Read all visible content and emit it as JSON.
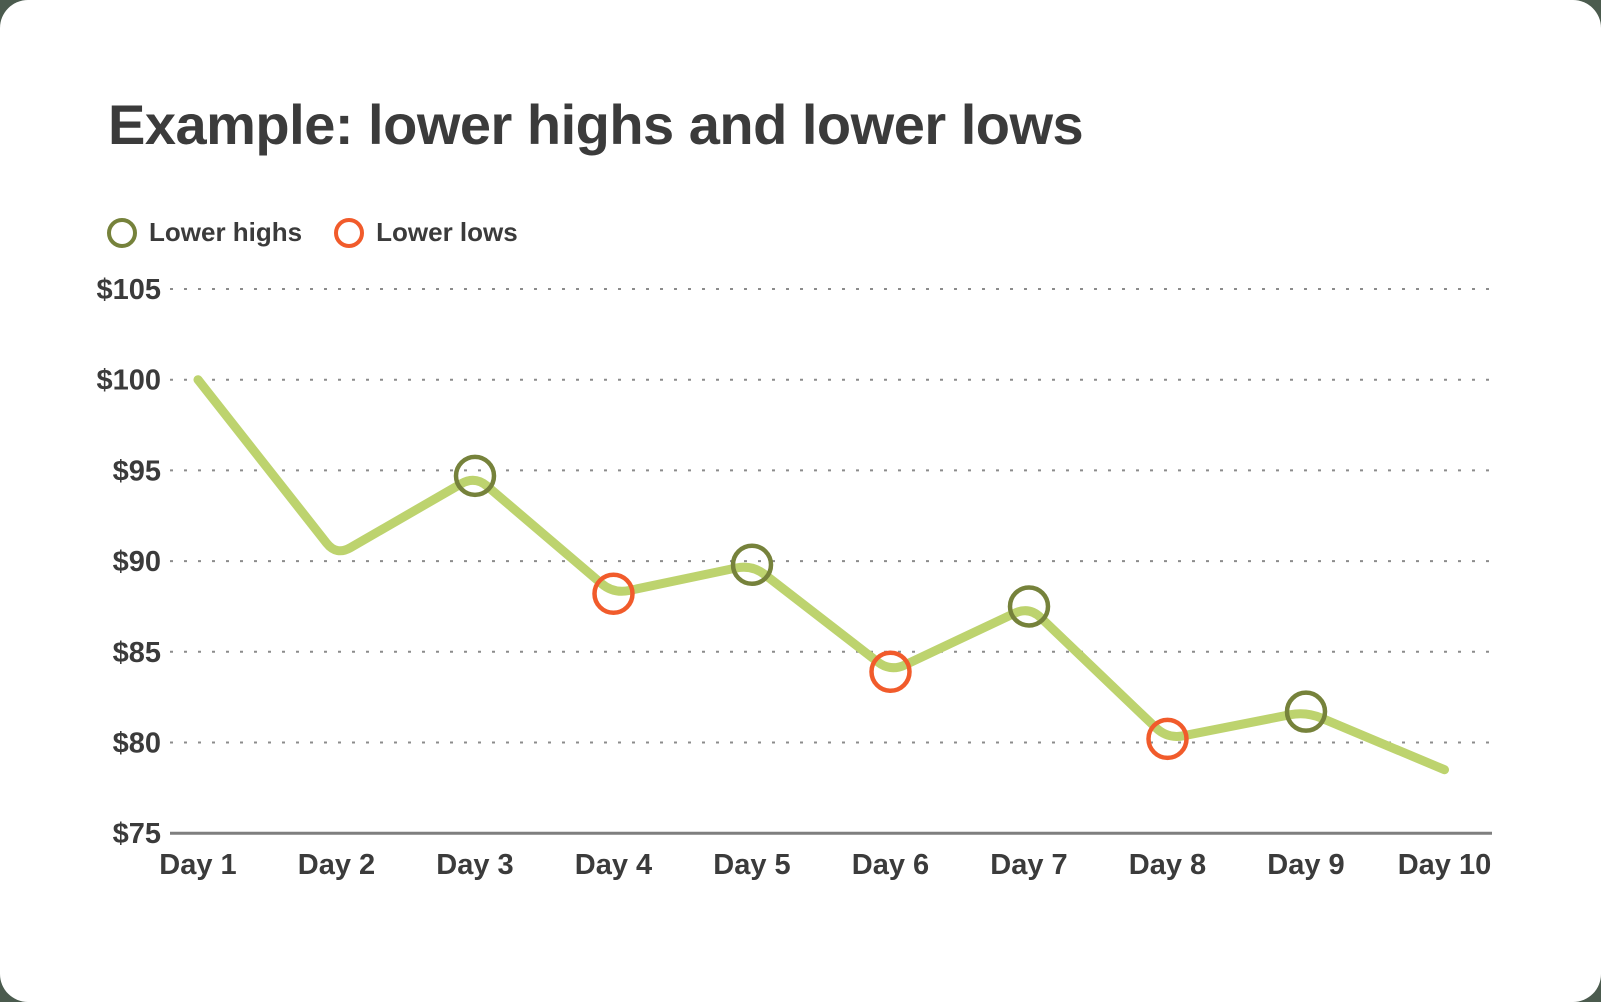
{
  "colors": {
    "page_background": "#4b5b4e",
    "card_background": "#ffffff",
    "text": "#3b3b3b",
    "line": "#bdd36e",
    "lower_high_ring": "#76823b",
    "lower_low_ring": "#f15b2b",
    "gridline": "#8c8c8c",
    "axis_line": "#7f7f7f"
  },
  "chart_data": {
    "type": "line",
    "title": "Example: lower highs and lower lows",
    "categories": [
      "Day 1",
      "Day 2",
      "Day 3",
      "Day 4",
      "Day 5",
      "Day 6",
      "Day 7",
      "Day 8",
      "Day 9",
      "Day 10"
    ],
    "values": [
      100,
      90.3,
      94.7,
      88.2,
      89.8,
      83.9,
      87.5,
      80.2,
      81.7,
      78.5
    ],
    "y_ticks": [
      {
        "label": "$105",
        "value": 105
      },
      {
        "label": "$100",
        "value": 100
      },
      {
        "label": "$95",
        "value": 95
      },
      {
        "label": "$90",
        "value": 90
      },
      {
        "label": "$85",
        "value": 85
      },
      {
        "label": "$80",
        "value": 80
      },
      {
        "label": "$75",
        "value": 75
      }
    ],
    "ylim": [
      75,
      105
    ],
    "grid": "horizontal-dotted",
    "legend_position": "top-left",
    "legend": [
      {
        "label": "Lower highs",
        "marker": "olive-ring",
        "applies_to": [
          "Day 3",
          "Day 5",
          "Day 7",
          "Day 9"
        ]
      },
      {
        "label": "Lower lows",
        "marker": "orange-ring",
        "applies_to": [
          "Day 4",
          "Day 6",
          "Day 8"
        ]
      }
    ],
    "markers": {
      "2": "lower_high",
      "3": "lower_low",
      "4": "lower_high",
      "5": "lower_low",
      "6": "lower_high",
      "7": "lower_low",
      "8": "lower_high"
    }
  }
}
